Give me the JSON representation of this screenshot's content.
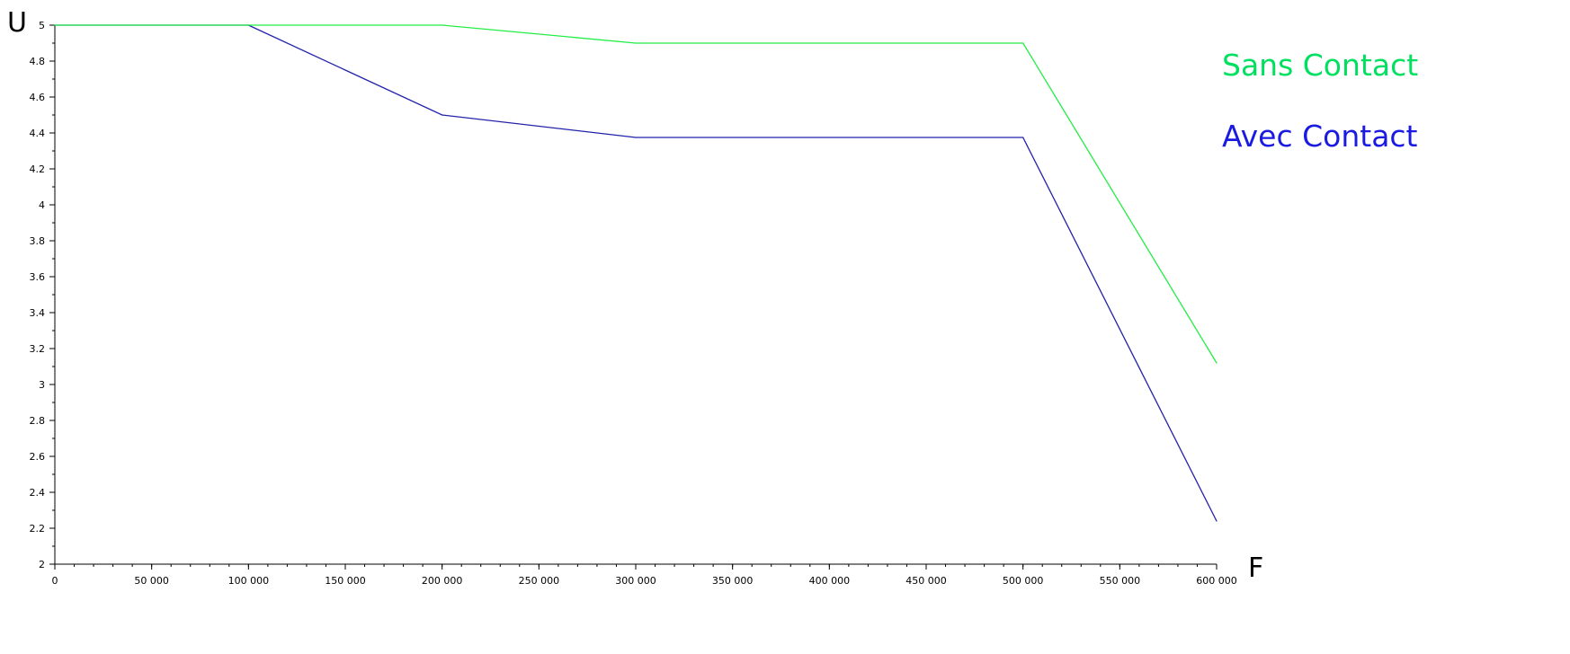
{
  "chart_data": {
    "type": "line",
    "title": "",
    "xlabel": "F",
    "ylabel": "U",
    "xlim": [
      0,
      600000
    ],
    "ylim": [
      2,
      5
    ],
    "x_ticks": [
      0,
      50000,
      100000,
      150000,
      200000,
      250000,
      300000,
      350000,
      400000,
      450000,
      500000,
      550000,
      600000
    ],
    "x_tick_labels": [
      "0",
      "50 000",
      "100 000",
      "150 000",
      "200 000",
      "250 000",
      "300 000",
      "350 000",
      "400 000",
      "450 000",
      "500 000",
      "550 000",
      "600 000"
    ],
    "y_ticks": [
      2,
      2.2,
      2.4,
      2.6,
      2.8,
      3,
      3.2,
      3.4,
      3.6,
      3.8,
      4,
      4.2,
      4.4,
      4.6,
      4.8,
      5
    ],
    "y_tick_labels": [
      "2",
      "2.2",
      "2.4",
      "2.6",
      "2.8",
      "3",
      "3.2",
      "3.4",
      "3.6",
      "3.8",
      "4",
      "4.2",
      "4.4",
      "4.6",
      "4.8",
      "5"
    ],
    "grid": false,
    "legend_position": "right",
    "x": [
      0,
      100000,
      200000,
      300000,
      500000,
      600000
    ],
    "series": [
      {
        "name": "Sans Contact",
        "color": "#22ee44",
        "legend_color": "#00e060",
        "values": [
          5,
          5,
          5,
          4.9,
          4.9,
          3.12
        ]
      },
      {
        "name": "Avec Contact",
        "color": "#2222aa",
        "legend_color": "#1a1ae0",
        "values": [
          5,
          5,
          4.5,
          4.375,
          4.375,
          2.24
        ]
      }
    ]
  }
}
